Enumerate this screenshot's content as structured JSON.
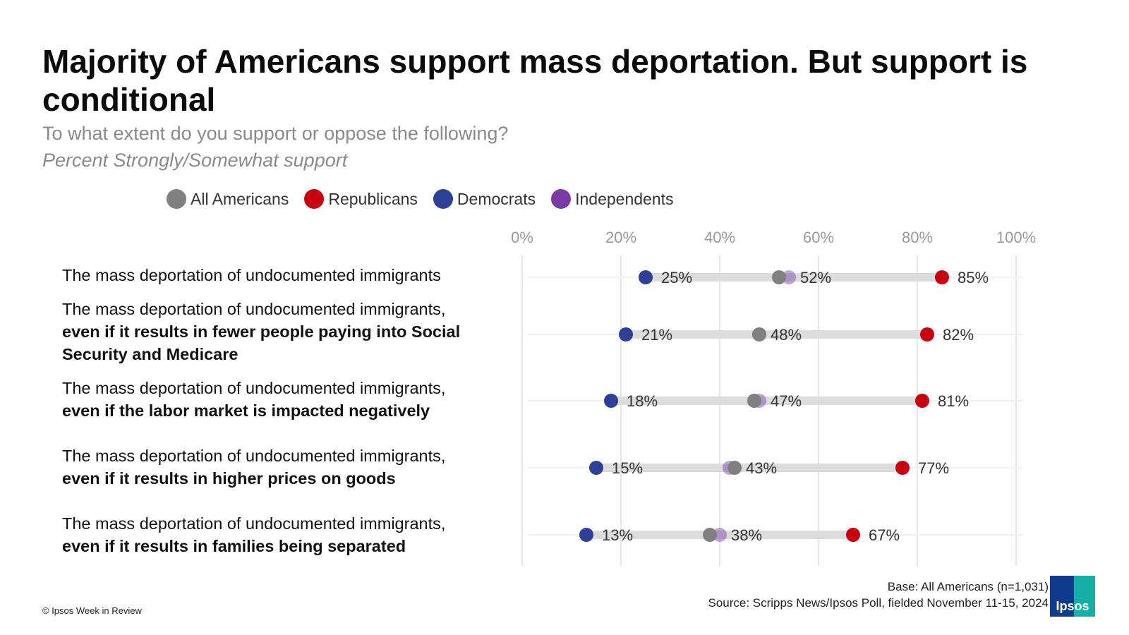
{
  "title": "Majority of Americans support mass deportation. But support is conditional",
  "subtitle": "To what extent do you support or oppose the following?",
  "subtitle2": "Percent Strongly/Somewhat support",
  "legend": [
    {
      "label": "All Americans",
      "color": "#808080"
    },
    {
      "label": "Republicans",
      "color": "#c8000f"
    },
    {
      "label": "Democrats",
      "color": "#2e3f9a"
    },
    {
      "label": "Independents",
      "color": "#7b3aa8"
    }
  ],
  "rows": [
    {
      "plain": "The mass deportation of undocumented immigrants",
      "bold": ""
    },
    {
      "plain": "The mass deportation of undocumented immigrants,",
      "bold": "even if it results in fewer people paying into Social Security and Medicare"
    },
    {
      "plain": "The mass deportation of undocumented immigrants,",
      "bold": "even if the labor market is impacted negatively"
    },
    {
      "plain": "The mass deportation of undocumented immigrants,",
      "bold": "even if it results in higher prices on goods"
    },
    {
      "plain": "The mass deportation of undocumented immigrants,",
      "bold": "even if it results in families being separated"
    }
  ],
  "chart_data": {
    "type": "dot",
    "x_ticks": [
      "0%",
      "20%",
      "40%",
      "60%",
      "80%",
      "100%"
    ],
    "xlim": [
      0,
      100
    ],
    "grid": true,
    "categories": [
      "The mass deportation of undocumented immigrants",
      "The mass deportation of undocumented immigrants, even if it results in fewer people paying into Social Security and Medicare",
      "The mass deportation of undocumented immigrants, even if the labor market is impacted negatively",
      "The mass deportation of undocumented immigrants, even if it results in higher prices on goods",
      "The mass deportation of undocumented immigrants, even if it results in families being separated"
    ],
    "series": [
      {
        "name": "All Americans",
        "values": [
          52,
          48,
          47,
          43,
          38
        ],
        "color": "#808080"
      },
      {
        "name": "Republicans",
        "values": [
          85,
          82,
          81,
          77,
          67
        ],
        "color": "#c8000f"
      },
      {
        "name": "Democrats",
        "values": [
          25,
          21,
          18,
          15,
          13
        ],
        "color": "#2e3f9a"
      },
      {
        "name": "Independents",
        "values": [
          54,
          48,
          48,
          42,
          40
        ],
        "color": "#7b3aa8"
      }
    ],
    "data_labels": [
      [
        "25%",
        "52%",
        "85%"
      ],
      [
        "21%",
        "48%",
        "82%"
      ],
      [
        "18%",
        "47%",
        "81%"
      ],
      [
        "15%",
        "43%",
        "77%"
      ],
      [
        "13%",
        "38%",
        "67%"
      ]
    ]
  },
  "footer": {
    "base": "Base: All Americans (n=1,031)",
    "source": "Source: Scripps News/Ipsos Poll, fielded November 11-15, 2024",
    "copyright": "© Ipsos Week in Review",
    "logo_text": "Ipsos"
  }
}
